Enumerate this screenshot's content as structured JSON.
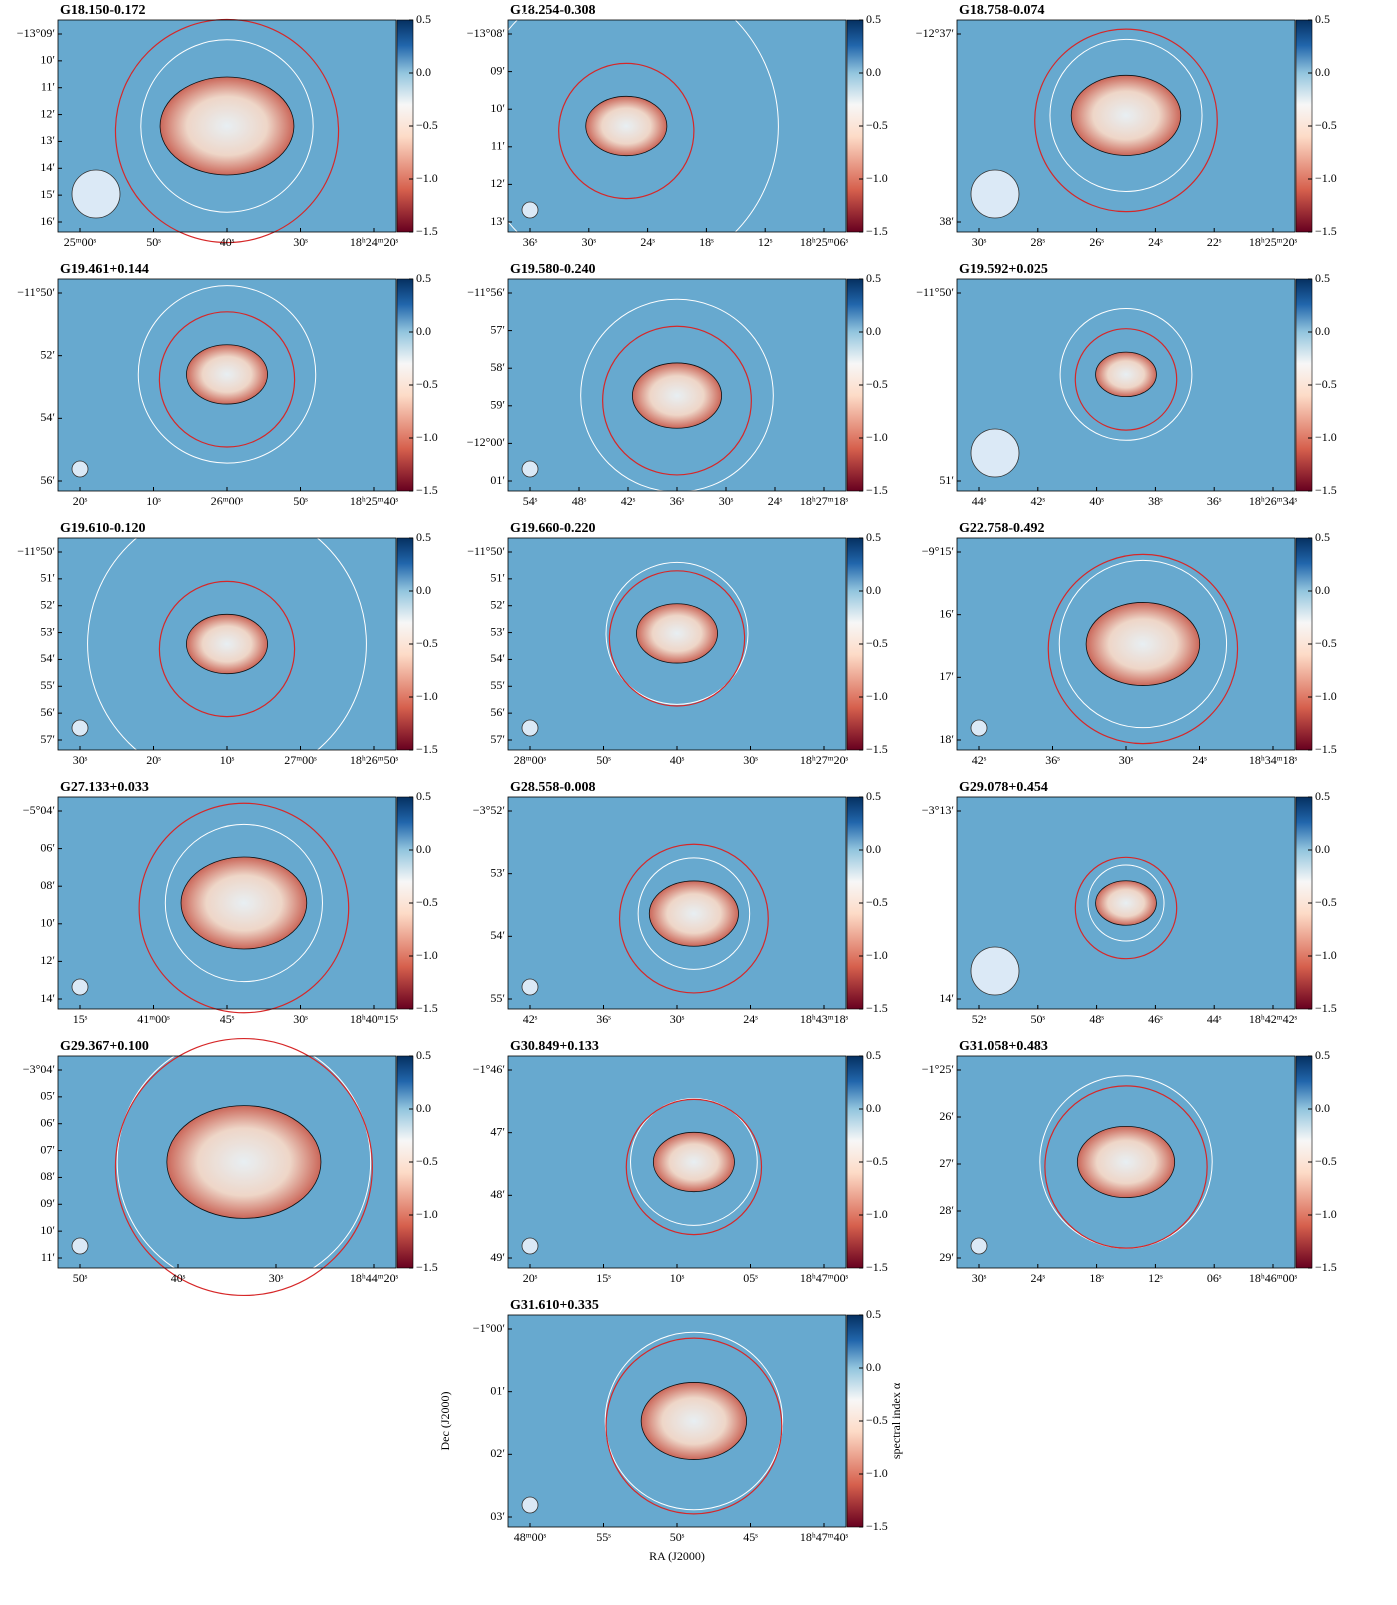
{
  "figure": {
    "colorbar": {
      "label": "spectral index α",
      "lim": [
        -1.5,
        0.5
      ],
      "ticks": [
        0.5,
        {
          "value": 0,
          "label": "0.0"
        },
        {
          "value": -0.5,
          "label": "−0.5"
        },
        {
          "value": -1,
          "label": "−1.0"
        },
        {
          "value": -1.5,
          "label": "−1.5"
        }
      ]
    },
    "x_label": "RA (J2000)",
    "y_label": "Dec (J2000)",
    "panels": [
      {
        "title": "G18.150-0.172",
        "dec": [
          "−13°09′",
          "10′",
          "11′",
          "12′",
          "13′",
          "14′",
          "15′",
          "16′"
        ],
        "ra": [
          "25ᵐ00ˢ",
          "50ˢ",
          "40ˢ",
          "30ˢ",
          "18ʰ24ᵐ20ˢ"
        ]
      },
      {
        "title": "G18.254-0.308",
        "dec": [
          "−13°08′",
          "09′",
          "10′",
          "11′",
          "12′",
          "13′"
        ],
        "ra": [
          "36ˢ",
          "30ˢ",
          "24ˢ",
          "18ˢ",
          "12ˢ",
          "18ʰ25ᵐ06ˢ"
        ]
      },
      {
        "title": "G18.758-0.074",
        "dec": [
          "−12°37′",
          "38′"
        ],
        "ra": [
          "30ˢ",
          "28ˢ",
          "26ˢ",
          "24ˢ",
          "22ˢ",
          "18ʰ25ᵐ20ˢ"
        ]
      },
      {
        "title": "G19.461+0.144",
        "dec": [
          "−11°50′",
          "52′",
          "54′",
          "56′"
        ],
        "ra": [
          "20ˢ",
          "10ˢ",
          "26ᵐ00ˢ",
          "50ˢ",
          "18ʰ25ᵐ40ˢ"
        ]
      },
      {
        "title": "G19.580-0.240",
        "dec": [
          "−11°56′",
          "57′",
          "58′",
          "59′",
          "−12°00′",
          "01′"
        ],
        "ra": [
          "54ˢ",
          "48ˢ",
          "42ˢ",
          "36ˢ",
          "30ˢ",
          "24ˢ",
          "18ʰ27ᵐ18ˢ"
        ]
      },
      {
        "title": "G19.592+0.025",
        "dec": [
          "−11°50′",
          "51′"
        ],
        "ra": [
          "44ˢ",
          "42ˢ",
          "40ˢ",
          "38ˢ",
          "36ˢ",
          "18ʰ26ᵐ34ˢ"
        ]
      },
      {
        "title": "G19.610-0.120",
        "dec": [
          "−11°50′",
          "51′",
          "52′",
          "53′",
          "54′",
          "55′",
          "56′",
          "57′"
        ],
        "ra": [
          "30ˢ",
          "20ˢ",
          "10ˢ",
          "27ᵐ00ˢ",
          "18ʰ26ᵐ50ˢ"
        ]
      },
      {
        "title": "G19.660-0.220",
        "dec": [
          "−11°50′",
          "51′",
          "52′",
          "53′",
          "54′",
          "55′",
          "56′",
          "57′"
        ],
        "ra": [
          "28ᵐ00ˢ",
          "50ˢ",
          "40ˢ",
          "30ˢ",
          "18ʰ27ᵐ20ˢ"
        ]
      },
      {
        "title": "G22.758-0.492",
        "dec": [
          "−9°15′",
          "16′",
          "17′",
          "18′"
        ],
        "ra": [
          "42ˢ",
          "36ˢ",
          "30ˢ",
          "24ˢ",
          "18ʰ34ᵐ18ˢ"
        ]
      },
      {
        "title": "G27.133+0.033",
        "dec": [
          "−5°04′",
          "06′",
          "08′",
          "10′",
          "12′",
          "14′"
        ],
        "ra": [
          "15ˢ",
          "41ᵐ00ˢ",
          "45ˢ",
          "30ˢ",
          "18ʰ40ᵐ15ˢ"
        ]
      },
      {
        "title": "G28.558-0.008",
        "dec": [
          "−3°52′",
          "53′",
          "54′",
          "55′"
        ],
        "ra": [
          "42ˢ",
          "36ˢ",
          "30ˢ",
          "24ˢ",
          "18ʰ43ᵐ18ˢ"
        ]
      },
      {
        "title": "G29.078+0.454",
        "dec": [
          "−3°13′",
          "14′"
        ],
        "ra": [
          "52ˢ",
          "50ˢ",
          "48ˢ",
          "46ˢ",
          "44ˢ",
          "18ʰ42ᵐ42ˢ"
        ]
      },
      {
        "title": "G29.367+0.100",
        "dec": [
          "−3°04′",
          "05′",
          "06′",
          "07′",
          "08′",
          "09′",
          "10′",
          "11′"
        ],
        "ra": [
          "50ˢ",
          "40ˢ",
          "30ˢ",
          "18ʰ44ᵐ20ˢ"
        ]
      },
      {
        "title": "G30.849+0.133",
        "dec": [
          "−1°46′",
          "47′",
          "48′",
          "49′"
        ],
        "ra": [
          "20ˢ",
          "15ˢ",
          "10ˢ",
          "05ˢ",
          "18ʰ47ᵐ00ˢ"
        ]
      },
      {
        "title": "G31.058+0.483",
        "dec": [
          "−1°25′",
          "26′",
          "27′",
          "28′",
          "29′"
        ],
        "ra": [
          "30ˢ",
          "24ˢ",
          "18ˢ",
          "12ˢ",
          "06ˢ",
          "18ʰ46ᵐ00ˢ"
        ]
      },
      {
        "title": "G31.610+0.335",
        "dec": [
          "−1°00′",
          "01′",
          "02′",
          "03′"
        ],
        "ra": [
          "48ᵐ00ˢ",
          "55ˢ",
          "50ˢ",
          "45ˢ",
          "18ʰ47ᵐ40ˢ"
        ]
      }
    ]
  }
}
